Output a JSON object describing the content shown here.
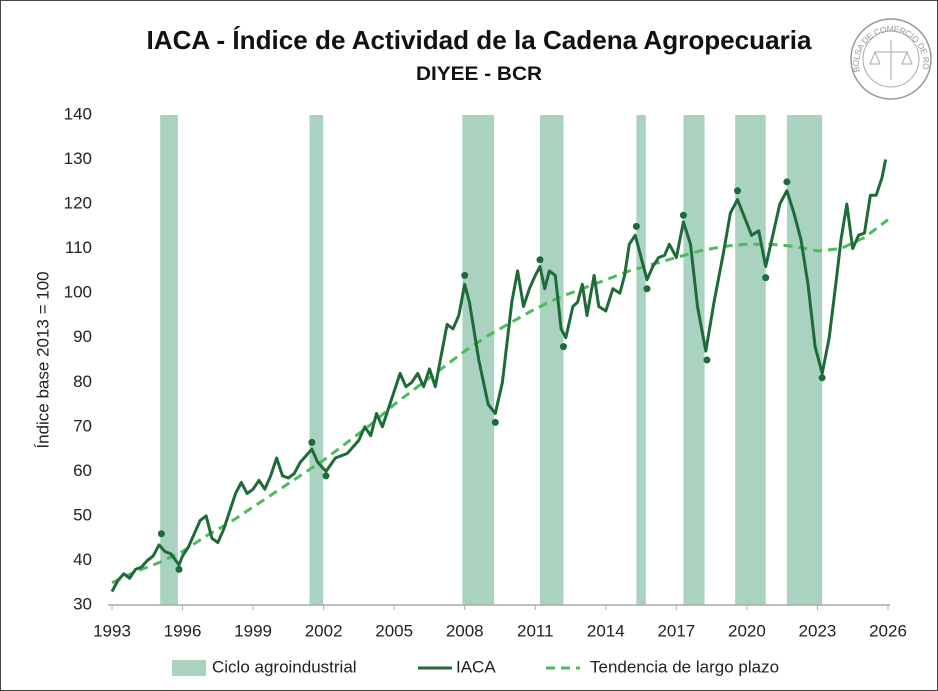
{
  "chart_data": {
    "type": "line",
    "title": "IACA - Índice de Actividad de la Cadena Agropecuaria",
    "subtitle": "DIYEE - BCR",
    "y_label": "Índice base 2013 = 100",
    "logo_text": "BOLSA DE COMERCIO DE ROSARIO",
    "xlim": [
      1993,
      2026
    ],
    "xticks": [
      1993,
      1996,
      1999,
      2002,
      2005,
      2008,
      2011,
      2014,
      2017,
      2020,
      2023,
      2026
    ],
    "ylim": [
      30,
      140
    ],
    "yticks": [
      30,
      40,
      50,
      60,
      70,
      80,
      90,
      100,
      110,
      120,
      130,
      140
    ],
    "grid": false,
    "legend": "bottom",
    "bands": {
      "name": "Ciclo agroindustrial",
      "color": "#a9d3c0",
      "ranges": [
        [
          1995.05,
          1995.8
        ],
        [
          2001.4,
          2001.98
        ],
        [
          2007.9,
          2009.25
        ],
        [
          2011.2,
          2012.2
        ],
        [
          2015.3,
          2015.7
        ],
        [
          2017.3,
          2018.2
        ],
        [
          2019.5,
          2020.8
        ],
        [
          2021.7,
          2023.2
        ]
      ]
    },
    "series": [
      {
        "name": "IACA",
        "color": "#1e6b3a",
        "style": "solid",
        "x": [
          1993.0,
          1993.25,
          1993.5,
          1993.75,
          1994.0,
          1994.25,
          1994.5,
          1994.75,
          1995.0,
          1995.25,
          1995.5,
          1995.85,
          1996.0,
          1996.25,
          1996.5,
          1996.75,
          1997.0,
          1997.25,
          1997.5,
          1997.75,
          1998.0,
          1998.25,
          1998.5,
          1998.75,
          1999.0,
          1999.25,
          1999.5,
          1999.75,
          2000.0,
          2000.25,
          2000.5,
          2000.75,
          2001.0,
          2001.5,
          2001.75,
          2002.1,
          2002.5,
          2003.0,
          2003.5,
          2003.75,
          2004.0,
          2004.25,
          2004.5,
          2004.75,
          2005.0,
          2005.25,
          2005.5,
          2005.75,
          2006.0,
          2006.25,
          2006.5,
          2006.75,
          2007.0,
          2007.25,
          2007.5,
          2007.75,
          2008.0,
          2008.2,
          2008.6,
          2009.0,
          2009.3,
          2009.6,
          2010.0,
          2010.25,
          2010.5,
          2010.75,
          2011.0,
          2011.2,
          2011.4,
          2011.6,
          2011.85,
          2012.1,
          2012.3,
          2012.6,
          2012.8,
          2013.0,
          2013.2,
          2013.5,
          2013.7,
          2014.0,
          2014.3,
          2014.6,
          2014.8,
          2015.0,
          2015.25,
          2015.5,
          2015.75,
          2016.0,
          2016.25,
          2016.5,
          2016.7,
          2017.0,
          2017.3,
          2017.6,
          2017.9,
          2018.25,
          2018.6,
          2019.0,
          2019.3,
          2019.6,
          2019.9,
          2020.2,
          2020.5,
          2020.8,
          2021.1,
          2021.4,
          2021.7,
          2022.0,
          2022.3,
          2022.6,
          2022.9,
          2023.2,
          2023.5,
          2023.8,
          2024.0,
          2024.25,
          2024.5,
          2024.75,
          2025.0,
          2025.25,
          2025.5,
          2025.75,
          2025.9
        ],
        "values": [
          33,
          35.5,
          37,
          36,
          38,
          38.5,
          40,
          41,
          43.5,
          42,
          41.5,
          39,
          41,
          43,
          46,
          49,
          50,
          45,
          44,
          47,
          51,
          55,
          57.5,
          55,
          56,
          58,
          56,
          59,
          63,
          59,
          58.5,
          59.5,
          62,
          65,
          62,
          60,
          63,
          64,
          67,
          70,
          68,
          73,
          70,
          74,
          78,
          82,
          79,
          80,
          82,
          79,
          83,
          79,
          86,
          93,
          92,
          95,
          102,
          98,
          85,
          75,
          73,
          80,
          98,
          105,
          97,
          101,
          104,
          106,
          101,
          105,
          104,
          92,
          90,
          97,
          98,
          102,
          95,
          104,
          97,
          96,
          101,
          100,
          104,
          111,
          113,
          108,
          103,
          106,
          108,
          108.5,
          111,
          108,
          116,
          111,
          97,
          87,
          98,
          109,
          118,
          121,
          117,
          113,
          114,
          106,
          113,
          120,
          123,
          118,
          112,
          102,
          88,
          82,
          90,
          103,
          112,
          120,
          110,
          113,
          113.5,
          122,
          122,
          126,
          130
        ]
      },
      {
        "name": "Tendencia de largo plazo",
        "color": "#4cbb5c",
        "style": "dashed",
        "x": [
          1993,
          1994,
          1995,
          1996,
          1997,
          1998,
          1999,
          2000,
          2001,
          2002,
          2003,
          2004,
          2005,
          2006,
          2007,
          2008,
          2009,
          2010,
          2011,
          2012,
          2013,
          2014,
          2015,
          2016,
          2017,
          2018,
          2019,
          2020,
          2021,
          2022,
          2023,
          2024,
          2025,
          2026
        ],
        "values": [
          35,
          37.5,
          39.5,
          42,
          45.5,
          48.5,
          52,
          55.5,
          59,
          62.5,
          66.5,
          70.5,
          75,
          79,
          83,
          87,
          90.5,
          93.5,
          96.5,
          99,
          101,
          103,
          105,
          106.5,
          108,
          109.5,
          110.5,
          111,
          111,
          110.5,
          109.5,
          110,
          112.5,
          116.5
        ]
      }
    ],
    "points": {
      "color": "#1e6b3a",
      "x": [
        1995.1,
        1995.85,
        2001.5,
        2002.1,
        2008.0,
        2009.3,
        2011.2,
        2012.2,
        2015.3,
        2015.75,
        2017.3,
        2018.3,
        2019.6,
        2020.8,
        2021.7,
        2023.2
      ],
      "values": [
        46,
        38,
        66.5,
        59,
        104,
        71,
        107.5,
        88,
        115,
        101,
        117.5,
        85,
        123,
        103.5,
        125,
        81
      ]
    }
  }
}
